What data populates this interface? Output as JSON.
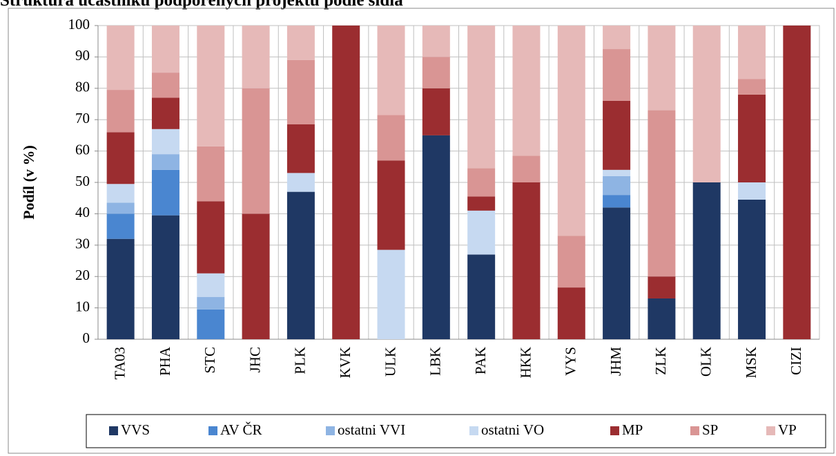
{
  "chart_data": {
    "type": "stacked_bar",
    "title": "Struktura účastníků podpořených projektů podle sídla",
    "y_label": "Podíl (v %)",
    "categories": [
      "TA03",
      "PHA",
      "STC",
      "JHC",
      "PLK",
      "KVK",
      "ULK",
      "LBK",
      "PAK",
      "HKK",
      "VYS",
      "JHM",
      "ZLK",
      "OLK",
      "MSK",
      "CIZI"
    ],
    "series": [
      {
        "name": "VVS",
        "color": "#1f3864",
        "values": [
          32,
          39.5,
          0,
          0,
          47,
          0,
          0,
          65,
          27,
          0,
          0,
          42,
          13,
          50,
          44.5,
          0
        ]
      },
      {
        "name": "AV ČR",
        "color": "#4a86d0",
        "values": [
          8,
          14.5,
          9.5,
          0,
          0,
          0,
          0,
          0,
          0,
          0,
          0,
          4,
          0,
          0,
          0,
          0
        ]
      },
      {
        "name": "ostatni VVI",
        "color": "#8eb4e3",
        "values": [
          3.5,
          5,
          4,
          0,
          0,
          0,
          0,
          0,
          0,
          0,
          0,
          6,
          0,
          0,
          0,
          0
        ]
      },
      {
        "name": "ostatni VO",
        "color": "#c6d9f1",
        "values": [
          6,
          8,
          7.5,
          0,
          6,
          0,
          28.5,
          0,
          14,
          0,
          0,
          2,
          0,
          0,
          5.5,
          0
        ]
      },
      {
        "name": "MP",
        "color": "#9b2d30",
        "values": [
          16.5,
          10,
          23,
          40,
          15.5,
          100,
          28.5,
          15,
          4.5,
          50,
          16.5,
          22,
          7,
          0,
          28,
          100
        ]
      },
      {
        "name": "SP",
        "color": "#d99594",
        "values": [
          13.5,
          8,
          17.5,
          40,
          20.5,
          0,
          14.5,
          10,
          9,
          8.5,
          16.5,
          16.5,
          53,
          0,
          5,
          0
        ]
      },
      {
        "name": "VP",
        "color": "#e6b9b8",
        "values": [
          20.5,
          15,
          38.5,
          20,
          11,
          0,
          28.5,
          10,
          45.5,
          41.5,
          67,
          7.5,
          27,
          50,
          17,
          0
        ]
      }
    ],
    "ylim": [
      0,
      100
    ],
    "yticks": [
      0,
      10,
      20,
      30,
      40,
      50,
      60,
      70,
      80,
      90,
      100
    ],
    "grid": true
  }
}
